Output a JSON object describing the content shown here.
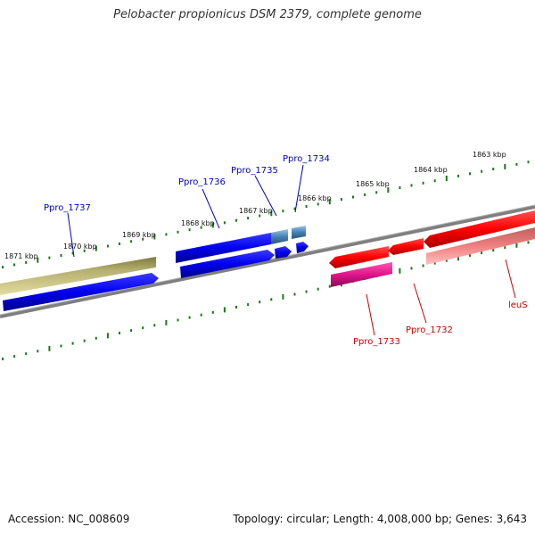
{
  "title": "Pelobacter propionicus DSM 2379, complete genome",
  "footer": {
    "accession": "Accession: NC_008609",
    "summary": "Topology: circular; Length: 4,008,000 bp; Genes: 3,643"
  },
  "ticks": [
    "1863 kbp",
    "1864 kbp",
    "1865 kbp",
    "1866 kbp",
    "1867 kbp",
    "1868 kbp",
    "1869 kbp",
    "1870 kbp",
    "1871 kbp"
  ],
  "genes": [
    {
      "name": "Ppro_1737",
      "color": "#0000cc"
    },
    {
      "name": "Ppro_1736",
      "color": "#0000cc"
    },
    {
      "name": "Ppro_1735",
      "color": "#0000cc"
    },
    {
      "name": "Ppro_1734",
      "color": "#0000cc"
    },
    {
      "name": "Ppro_1733",
      "color": "#cc0000"
    },
    {
      "name": "Ppro_1732",
      "color": "#cc0000"
    },
    {
      "name": "leuS",
      "color": "#cc0000"
    }
  ],
  "colors": {
    "tick_green": "#1a7a1a",
    "backbone": "#7f7f7f",
    "olive": "#b5b070",
    "blue": "#0000ee",
    "steel_blue": "#4682b4",
    "red": "#ff0000",
    "magenta": "#e0158a",
    "salmon": "#f08080"
  }
}
